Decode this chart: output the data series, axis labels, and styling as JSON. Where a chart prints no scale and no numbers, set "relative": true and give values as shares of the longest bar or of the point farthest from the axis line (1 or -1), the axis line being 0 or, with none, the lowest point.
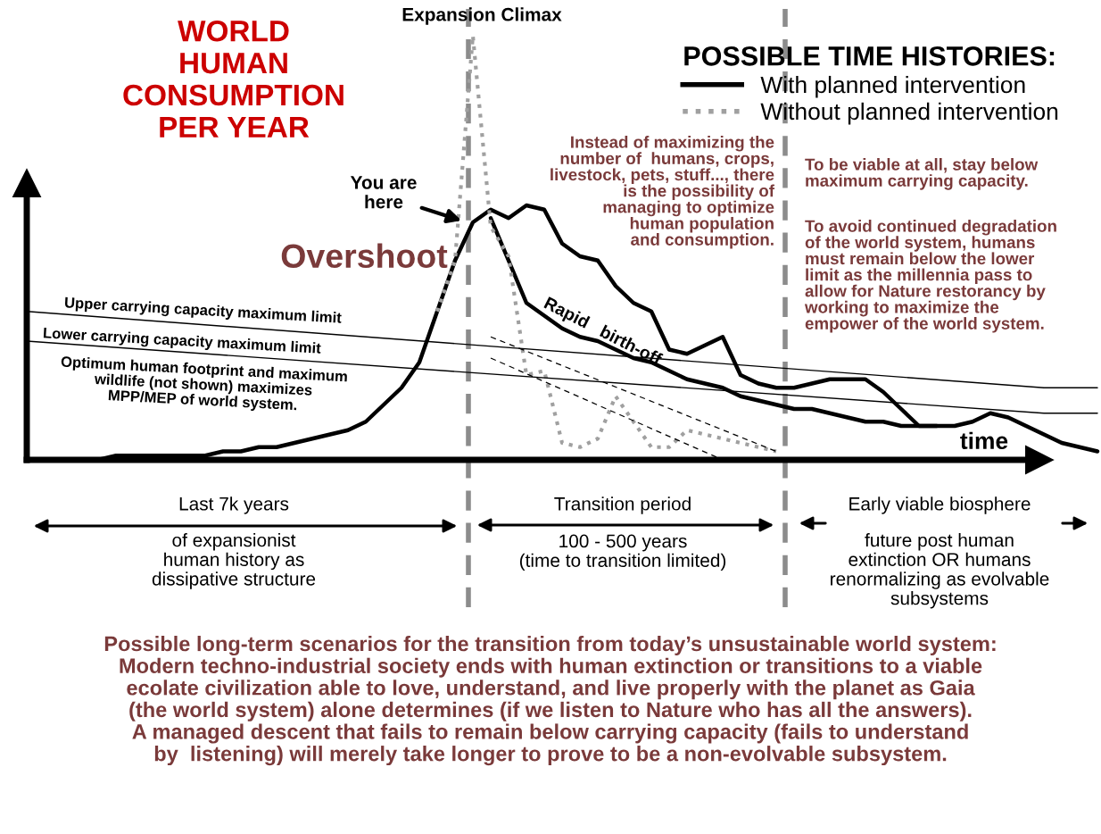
{
  "chart_data": {
    "type": "line",
    "relative": true,
    "title": "WORLD\nHUMAN\nCONSUMPTION\nPER YEAR",
    "xlabel": "time",
    "legend_title": "POSSIBLE TIME HISTORIES:",
    "legend": "top right",
    "grid": false,
    "categories": [
      null,
      null,
      null,
      null,
      null,
      null,
      null,
      null,
      null,
      null,
      null,
      null,
      null,
      null,
      null,
      null,
      null,
      null,
      null,
      null,
      null,
      null,
      null,
      null,
      null,
      null,
      null,
      null,
      null,
      null,
      null,
      null,
      null,
      null,
      null,
      null,
      null,
      null,
      null,
      null,
      null,
      null,
      null,
      null,
      null,
      null,
      null,
      null,
      null,
      null,
      null,
      null,
      null,
      null,
      null,
      null,
      null,
      null,
      null,
      null,
      null
    ],
    "series": [
      {
        "name": "With planned intervention",
        "color": "#000000",
        "line_style": "solid",
        "values": [
          0.0,
          0.0,
          0.0,
          0.0,
          0.0,
          0.01,
          0.01,
          0.01,
          0.01,
          0.01,
          0.01,
          0.02,
          0.02,
          0.03,
          0.03,
          0.04,
          0.05,
          0.06,
          0.07,
          0.09,
          0.13,
          0.17,
          0.23,
          0.35,
          0.47,
          0.56,
          0.59,
          0.57,
          0.6,
          0.59,
          0.51,
          0.48,
          0.47,
          0.41,
          0.37,
          0.35,
          0.26,
          0.25,
          0.27,
          0.29,
          0.2,
          0.18,
          0.17,
          0.17,
          0.18,
          0.19,
          0.19,
          0.19,
          0.16,
          0.12,
          0.08,
          0.08,
          0.08,
          0.09,
          0.11,
          0.1,
          0.08,
          0.06,
          0.04,
          0.03,
          0.02
        ]
      },
      {
        "color": "#000000",
        "line_style": "solid",
        "values": [
          null,
          null,
          null,
          null,
          null,
          null,
          null,
          null,
          null,
          null,
          null,
          null,
          null,
          null,
          null,
          null,
          null,
          null,
          null,
          null,
          null,
          null,
          null,
          null,
          null,
          null,
          0.57,
          0.47,
          0.37,
          0.34,
          0.31,
          0.29,
          0.28,
          0.26,
          0.24,
          0.23,
          0.21,
          0.19,
          0.18,
          0.17,
          0.15,
          0.14,
          0.13,
          0.12,
          0.12,
          0.11,
          0.1,
          0.09,
          0.09,
          0.08,
          0.08,
          0.08,
          null,
          null,
          null,
          null,
          null,
          null,
          null,
          null,
          null
        ]
      },
      {
        "name": "Without planned intervention",
        "color": "#a0a0a0",
        "line_style": "dotted",
        "values": [
          null,
          null,
          null,
          null,
          null,
          null,
          null,
          null,
          null,
          null,
          null,
          null,
          null,
          null,
          null,
          null,
          null,
          null,
          null,
          null,
          null,
          null,
          null,
          0.35,
          0.47,
          1.0,
          0.55,
          0.48,
          0.2,
          0.21,
          0.04,
          0.03,
          0.05,
          0.15,
          0.09,
          0.03,
          0.03,
          0.07,
          0.06,
          0.05,
          0.04,
          0.03,
          0.02,
          null,
          null,
          null,
          null,
          null,
          null,
          null,
          null,
          null,
          null,
          null,
          null,
          null,
          null,
          null,
          null,
          null,
          null
        ]
      },
      {
        "name": "Upper carrying capacity maximum limit",
        "color": "#000000",
        "line_style": "solid",
        "values": [
          0.35,
          null,
          null,
          null,
          null,
          null,
          null,
          null,
          null,
          null,
          null,
          null,
          null,
          null,
          null,
          null,
          null,
          null,
          null,
          null,
          null,
          null,
          null,
          null,
          null,
          null,
          null,
          null,
          null,
          null,
          null,
          null,
          null,
          null,
          null,
          null,
          null,
          null,
          null,
          null,
          null,
          null,
          null,
          null,
          null,
          null,
          null,
          null,
          null,
          null,
          null,
          null,
          null,
          null,
          null,
          null,
          null,
          0.17,
          null,
          null,
          0.17
        ]
      },
      {
        "name": "Lower carrying capacity maximum limit",
        "color": "#000000",
        "line_style": "solid",
        "values": [
          0.28,
          null,
          null,
          null,
          null,
          null,
          null,
          null,
          null,
          null,
          null,
          null,
          null,
          null,
          null,
          null,
          null,
          null,
          null,
          null,
          null,
          null,
          null,
          null,
          null,
          null,
          null,
          null,
          null,
          null,
          null,
          null,
          null,
          null,
          null,
          null,
          null,
          null,
          null,
          null,
          null,
          null,
          null,
          null,
          null,
          null,
          null,
          null,
          null,
          null,
          null,
          null,
          null,
          null,
          null,
          null,
          null,
          0.11,
          null,
          null,
          0.11
        ]
      },
      {
        "color": "#000000",
        "line_style": "dashed",
        "values": [
          null,
          null,
          null,
          null,
          null,
          null,
          null,
          null,
          null,
          null,
          null,
          null,
          null,
          null,
          null,
          null,
          null,
          null,
          null,
          null,
          null,
          null,
          null,
          null,
          null,
          null,
          0.29,
          null,
          null,
          null,
          null,
          null,
          null,
          null,
          null,
          null,
          null,
          null,
          null,
          null,
          null,
          null,
          0.02,
          null,
          null,
          null,
          null,
          null,
          null,
          null,
          null,
          null,
          null,
          null,
          null,
          null,
          null,
          null,
          null,
          null,
          null
        ]
      },
      {
        "color": "#000000",
        "line_style": "dashed",
        "values": [
          null,
          null,
          null,
          null,
          null,
          null,
          null,
          null,
          null,
          null,
          null,
          null,
          null,
          null,
          null,
          null,
          null,
          null,
          null,
          null,
          null,
          null,
          null,
          null,
          null,
          null,
          0.24,
          null,
          null,
          null,
          null,
          null,
          null,
          null,
          null,
          null,
          null,
          null,
          null,
          0.0,
          null,
          null,
          null,
          null,
          null,
          null,
          null,
          null,
          null,
          null,
          null,
          null,
          null,
          null,
          null,
          null,
          null,
          null,
          null,
          null,
          null
        ]
      }
    ],
    "annotations": [
      "Expansion Climax",
      "You are\nhere",
      "Overshoot",
      "Rapid   birth-off",
      "Optimum human footprint and maximum\nwildlife (not shown) maximizes\nMPP/MEP of world system.",
      "Instead of maximizing the\nnumber of  humans, crops,\nlivestock, pets, stuff..., there\nis the possibility of\nmanaging to optimize\nhuman population\nand consumption.",
      "To be viable at all, stay below\nmaximum carrying capacity.",
      "To avoid continued degradation\nof the world system, humans\nmust remain below the lower\nlimit as the millennia pass to\nallow for Nature restorancy by\nworking to maximize the\nempower of the world system.",
      "Last 7k years",
      "of expansionist\nhuman history as\ndissipative structure",
      "Transition period",
      "100 - 500 years\n(time to transition limited)",
      "Early viable biosphere",
      "future post human\nextinction OR humans\nrenormalizing as evolvable\nsubsystems",
      "Possible long-term scenarios for the transition from today’s unsustainable world system:\nModern techno-industrial society ends with human extinction or transitions to a viable\necolate civilization able to love, understand, and live properly with the planet as Gaia\n(the world system) alone determines (if we listen to Nature who has all the answers).\nA managed descent that fails to remain below carrying capacity (fails to understand\nby  listening) will merely take longer to prove to be a non-evolvable subsystem."
    ]
  }
}
